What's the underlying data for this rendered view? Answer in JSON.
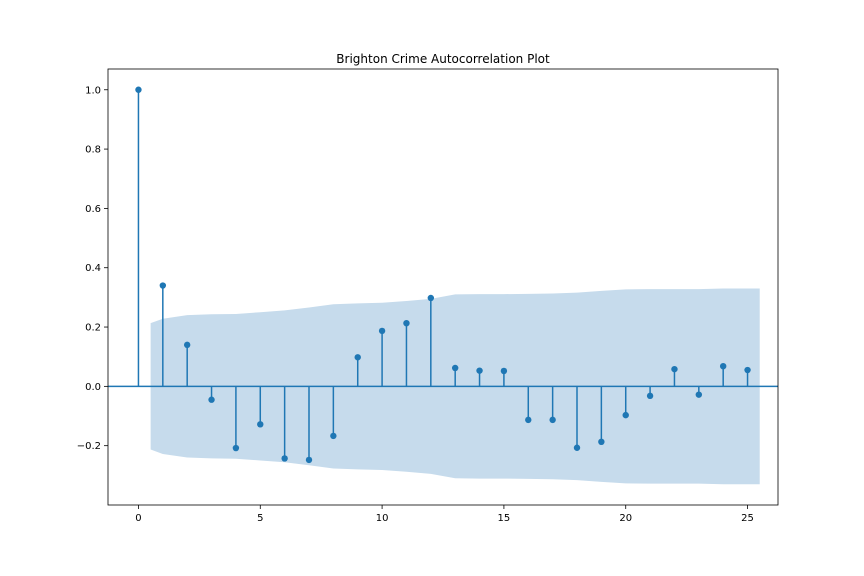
{
  "chart_data": {
    "type": "stem",
    "title": "Brighton Crime Autocorrelation Plot",
    "xlabel": "",
    "ylabel": "",
    "xlim": [
      -1.25,
      26.25
    ],
    "ylim": [
      -0.4,
      1.07
    ],
    "xticks": [
      0,
      5,
      10,
      15,
      20,
      25
    ],
    "yticks": [
      -0.2,
      0.0,
      0.2,
      0.4,
      0.6,
      0.8,
      1.0
    ],
    "ytick_labels": [
      "−0.2",
      "0.0",
      "0.2",
      "0.4",
      "0.6",
      "0.8",
      "1.0"
    ],
    "lags": [
      0,
      1,
      2,
      3,
      4,
      5,
      6,
      7,
      8,
      9,
      10,
      11,
      12,
      13,
      14,
      15,
      16,
      17,
      18,
      19,
      20,
      21,
      22,
      23,
      24,
      25
    ],
    "values": [
      1.0,
      0.34,
      0.14,
      -0.045,
      -0.208,
      -0.128,
      -0.243,
      -0.248,
      -0.167,
      0.098,
      0.187,
      0.213,
      0.298,
      0.062,
      0.053,
      0.052,
      -0.113,
      -0.113,
      -0.207,
      -0.187,
      -0.097,
      -0.032,
      0.058,
      -0.028,
      0.068,
      0.055
    ],
    "confidence_band": {
      "x": [
        0.5,
        1,
        2,
        3,
        4,
        5,
        6,
        7,
        8,
        9,
        10,
        11,
        12,
        13,
        14,
        15,
        16,
        17,
        18,
        19,
        20,
        21,
        22,
        23,
        24,
        25,
        25.5
      ],
      "upper": [
        0.213,
        0.228,
        0.24,
        0.243,
        0.244,
        0.25,
        0.256,
        0.266,
        0.277,
        0.28,
        0.282,
        0.288,
        0.295,
        0.31,
        0.311,
        0.311,
        0.312,
        0.313,
        0.316,
        0.322,
        0.327,
        0.328,
        0.328,
        0.328,
        0.33,
        0.33,
        0.33
      ]
    },
    "colors": {
      "stem": "#1f77b4",
      "band": "#c6dbec",
      "zero_line": "#1f77b4"
    }
  }
}
